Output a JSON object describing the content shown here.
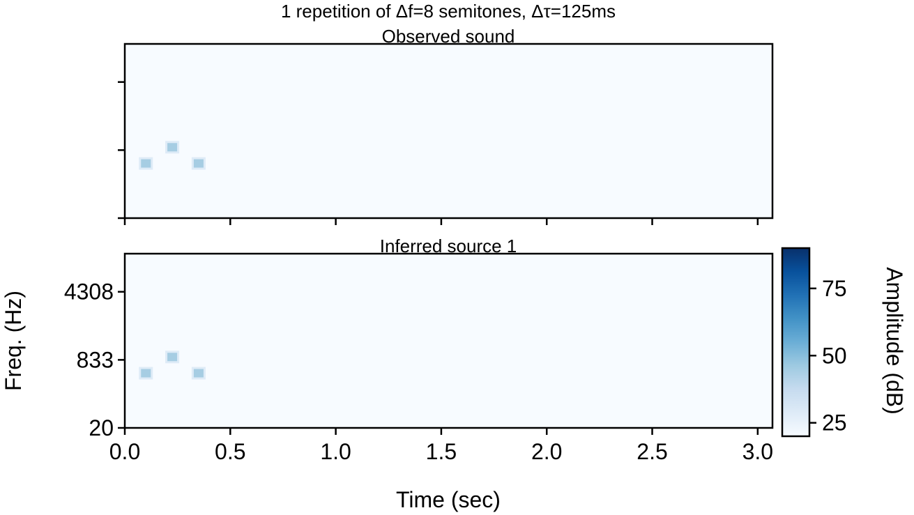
{
  "figure": {
    "suptitle": "1 repetition of Δf=8 semitones, Δτ=125ms"
  },
  "chart_data": [
    {
      "type": "heatmap",
      "title": "Observed sound",
      "xlim": [
        0.0,
        3.07
      ],
      "ylim": [
        20,
        10000
      ],
      "yscale": "ERB-spaced frequency",
      "yticks": [
        20,
        833,
        4308
      ],
      "ytick_labels_shown": false,
      "xticks": [
        0.0,
        0.5,
        1.0,
        1.5,
        2.0,
        2.5,
        3.0
      ],
      "xtick_labels_shown": false,
      "background_level_db": 20,
      "tones": [
        {
          "t": 0.1,
          "f": 570,
          "level_db": 48
        },
        {
          "t": 0.225,
          "f": 900,
          "level_db": 48
        },
        {
          "t": 0.35,
          "f": 570,
          "level_db": 48
        }
      ]
    },
    {
      "type": "heatmap",
      "title": "Inferred source 1",
      "xlabel": "Time (sec)",
      "ylabel": "Freq. (Hz)",
      "xlim": [
        0.0,
        3.07
      ],
      "ylim": [
        20,
        10000
      ],
      "xticks": [
        0.0,
        0.5,
        1.0,
        1.5,
        2.0,
        2.5,
        3.0
      ],
      "xtick_labels": [
        "0.0",
        "0.5",
        "1.0",
        "1.5",
        "2.0",
        "2.5",
        "3.0"
      ],
      "yticks": [
        20,
        833,
        4308
      ],
      "ytick_labels": [
        "20",
        "833",
        "4308"
      ],
      "background_level_db": 20,
      "tones": [
        {
          "t": 0.1,
          "f": 570,
          "level_db": 48
        },
        {
          "t": 0.225,
          "f": 900,
          "level_db": 48
        },
        {
          "t": 0.35,
          "f": 570,
          "level_db": 48
        }
      ]
    }
  ],
  "colorbar": {
    "label": "Amplitude (dB)",
    "range": [
      20,
      90
    ],
    "ticks": [
      25,
      50,
      75
    ],
    "tick_labels": [
      "25",
      "50",
      "75"
    ],
    "colormap": "Blues",
    "color_low": "#f7fbff",
    "color_high": "#08306b"
  }
}
